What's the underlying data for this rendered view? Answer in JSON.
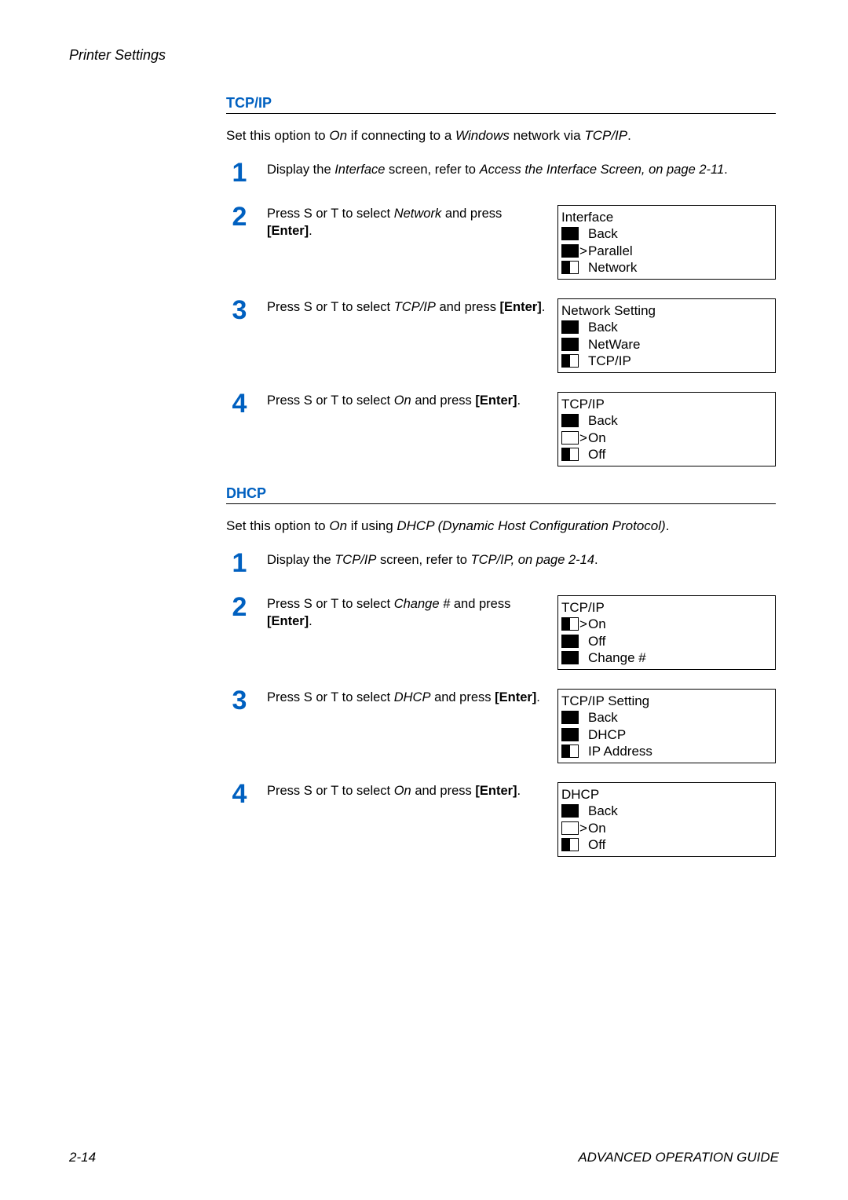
{
  "header": {
    "title": "Printer Settings"
  },
  "footer": {
    "page_num": "2-14",
    "doc_title": "ADVANCED OPERATION GUIDE"
  },
  "styling": {
    "accent_color": "#0060c0",
    "step_num_color": "#0060c0",
    "step_num_fontsize": 34,
    "body_fontsize": 17,
    "page_bg": "#ffffff",
    "text_color": "#000000",
    "display_box_width": 278,
    "display_box_border": "#000000"
  },
  "sections": [
    {
      "heading": "TCP/IP",
      "intro_html": "Set this option to <em>On</em> if connecting to a <em>Windows</em> network via <em>TCP/IP</em>.",
      "steps": [
        {
          "num": "1",
          "text_html": "Display the <em>Interface</em> screen, refer to <em>Access the Interface Screen, on page 2-11</em>.",
          "display": null
        },
        {
          "num": "2",
          "text_html": "Press  S or  T to select <em>Network</em> and press <span class='bold'>[Enter]</span>.",
          "display": {
            "title": "Interface",
            "rows": [
              {
                "marker": "sel",
                "prefix": "",
                "label": "Back"
              },
              {
                "marker": "sel",
                "prefix": ">",
                "label": "Parallel"
              },
              {
                "marker": "half",
                "prefix": "",
                "label": "Network"
              }
            ]
          }
        },
        {
          "num": "3",
          "text_html": "Press  S or  T to select <em>TCP/IP</em> and press <span class='bold'>[Enter]</span>.",
          "display": {
            "title": "Network Setting",
            "rows": [
              {
                "marker": "sel",
                "prefix": "",
                "label": "Back"
              },
              {
                "marker": "sel",
                "prefix": "",
                "label": "NetWare"
              },
              {
                "marker": "half",
                "prefix": "",
                "label": "TCP/IP"
              }
            ]
          }
        },
        {
          "num": "4",
          "text_html": "Press  S or  T to select <em>On</em> and press <span class='bold'>[Enter]</span>.",
          "display": {
            "title": "TCP/IP",
            "rows": [
              {
                "marker": "sel",
                "prefix": "",
                "label": "Back"
              },
              {
                "marker": "unsel-dot",
                "prefix": ">",
                "label": "On"
              },
              {
                "marker": "half",
                "prefix": "",
                "label": "Off"
              }
            ]
          }
        }
      ]
    },
    {
      "heading": "DHCP",
      "intro_html": "Set this option to <em>On</em> if using <em>DHCP (Dynamic Host Configuration Protocol)</em>.",
      "steps": [
        {
          "num": "1",
          "text_html": "Display the <em>TCP/IP</em> screen, refer to <em>TCP/IP, on page 2-14</em>.",
          "display": null
        },
        {
          "num": "2",
          "text_html": "Press  S or  T to select <em>Change #</em> and press <span class='bold'>[Enter]</span>.",
          "display": {
            "title": "TCP/IP",
            "rows": [
              {
                "marker": "half",
                "prefix": ">",
                "label": "On"
              },
              {
                "marker": "sel",
                "prefix": "",
                "label": "Off"
              },
              {
                "marker": "sel",
                "prefix": "",
                "label": "Change #"
              }
            ]
          }
        },
        {
          "num": "3",
          "text_html": "Press  S or  T to select <em>DHCP</em> and press <span class='bold'>[Enter]</span>.",
          "display": {
            "title": "TCP/IP Setting",
            "rows": [
              {
                "marker": "sel",
                "prefix": "",
                "label": "Back"
              },
              {
                "marker": "sel",
                "prefix": "",
                "label": "DHCP"
              },
              {
                "marker": "half",
                "prefix": "",
                "label": "IP Address"
              }
            ]
          }
        },
        {
          "num": "4",
          "text_html": "Press  S or  T to select <em>On</em> and press <span class='bold'>[Enter]</span>.",
          "display": {
            "title": "DHCP",
            "rows": [
              {
                "marker": "sel",
                "prefix": "",
                "label": "Back"
              },
              {
                "marker": "unsel-dot",
                "prefix": ">",
                "label": "On"
              },
              {
                "marker": "half",
                "prefix": "",
                "label": "Off"
              }
            ]
          }
        }
      ]
    }
  ]
}
